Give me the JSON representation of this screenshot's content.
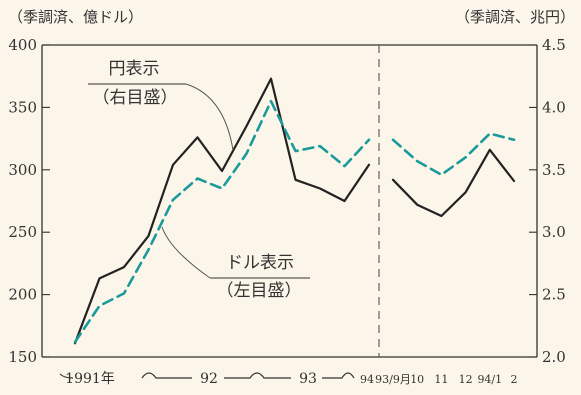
{
  "chart_data": {
    "type": "line",
    "left_axis": {
      "unit_label": "（季調済、億ドル）",
      "min": 150,
      "max": 400,
      "ticks": [
        150,
        200,
        250,
        300,
        350,
        400
      ],
      "tick_labels": [
        "150",
        "200",
        "250",
        "300",
        "350",
        "400"
      ]
    },
    "right_axis": {
      "unit_label": "（季調済、兆円）",
      "min": 2.0,
      "max": 4.5,
      "ticks": [
        2.0,
        2.5,
        3.0,
        3.5,
        4.0,
        4.5
      ],
      "tick_labels": [
        "2.0",
        "2.5",
        "3.0",
        "3.5",
        "4.0",
        "4.5"
      ]
    },
    "x_labels": {
      "quarter": [
        "1991年",
        "92",
        "93",
        "94"
      ],
      "month": [
        "93/9月",
        "10",
        "11",
        "12",
        "94/1",
        "2"
      ]
    },
    "annotations": {
      "yen": {
        "title": "円表示",
        "axis_note": "（右目盛）"
      },
      "dollar": {
        "title": "ドル表示",
        "axis_note": "（左目盛）"
      }
    },
    "series": [
      {
        "segment": "quarterly",
        "role": "dollar",
        "style": "solid",
        "color": "#222222",
        "values": [
          161,
          213,
          222,
          247,
          304,
          326,
          299,
          335,
          373,
          292,
          285,
          275,
          304
        ]
      },
      {
        "segment": "quarterly",
        "role": "yen",
        "style": "dashed",
        "color": "#1a9a9a",
        "values": [
          2.12,
          2.41,
          2.51,
          2.86,
          3.26,
          3.43,
          3.35,
          3.63,
          4.05,
          3.65,
          3.69,
          3.53,
          3.74
        ]
      },
      {
        "segment": "monthly",
        "role": "dollar",
        "style": "solid",
        "color": "#222222",
        "values": [
          292,
          272,
          263,
          282,
          316,
          291
        ]
      },
      {
        "segment": "monthly",
        "role": "yen",
        "style": "dashed",
        "color": "#1a9a9a",
        "values": [
          3.74,
          3.57,
          3.46,
          3.6,
          3.79,
          3.74
        ]
      }
    ]
  }
}
